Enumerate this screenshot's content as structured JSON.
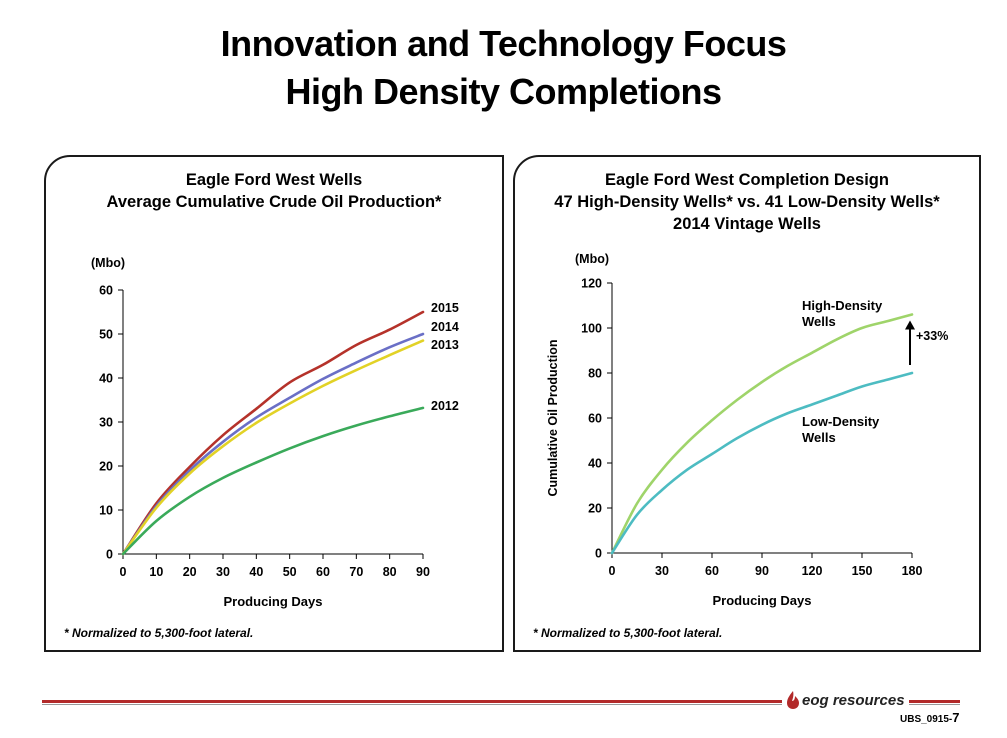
{
  "slide": {
    "title_line1": "Innovation and Technology Focus",
    "title_line2": "High Density Completions",
    "logo_text": "eog resources",
    "slide_code": "UBS_0915-",
    "slide_number": "7"
  },
  "chart_data": [
    {
      "type": "line",
      "title": "Eagle Ford West Wells",
      "subtitle": "Average Cumulative Crude Oil Production*",
      "xlabel": "Producing Days",
      "ylabel": "(Mbo)",
      "xlim": [
        0,
        90
      ],
      "ylim": [
        0,
        60
      ],
      "xticks": [
        0,
        10,
        20,
        30,
        40,
        50,
        60,
        70,
        80,
        90
      ],
      "yticks": [
        0,
        10,
        20,
        30,
        40,
        50,
        60
      ],
      "x": [
        0,
        10,
        20,
        30,
        40,
        50,
        60,
        70,
        80,
        90
      ],
      "series": [
        {
          "name": "2015",
          "color": "#b5322a",
          "values": [
            0,
            11.5,
            19.8,
            27.0,
            33.0,
            39.0,
            43.0,
            47.5,
            51.0,
            55.0
          ]
        },
        {
          "name": "2014",
          "color": "#6a6fc6",
          "values": [
            0,
            10.9,
            19.0,
            25.5,
            31.0,
            35.5,
            39.8,
            43.5,
            47.0,
            50.0
          ]
        },
        {
          "name": "2013",
          "color": "#e2d226",
          "values": [
            0,
            10.5,
            18.3,
            24.5,
            29.8,
            34.2,
            38.2,
            41.8,
            45.2,
            48.5
          ]
        },
        {
          "name": "2012",
          "color": "#3aaa5a",
          "values": [
            0,
            7.5,
            13.0,
            17.3,
            20.8,
            24.0,
            26.8,
            29.2,
            31.3,
            33.2
          ]
        }
      ],
      "footnote": "* Normalized to 5,300-foot lateral."
    },
    {
      "type": "line",
      "title": "Eagle Ford West Completion Design",
      "subtitle": "47 High-Density Wells* vs. 41 Low-Density Wells*",
      "subtitle2": "2014 Vintage Wells",
      "xlabel": "Producing Days",
      "ylabel": "Cumulative Oil Production",
      "yunit": "(Mbo)",
      "xlim": [
        0,
        180
      ],
      "ylim": [
        0,
        120
      ],
      "xticks": [
        0,
        30,
        60,
        90,
        120,
        150,
        180
      ],
      "yticks": [
        0,
        20,
        40,
        60,
        80,
        100,
        120
      ],
      "x": [
        0,
        15,
        30,
        45,
        60,
        75,
        90,
        105,
        120,
        135,
        150,
        165,
        180
      ],
      "series": [
        {
          "name": "High-Density\nWells",
          "color": "#9fd46a",
          "values": [
            0,
            22,
            37,
            49,
            59,
            68,
            76,
            83,
            89,
            95,
            100,
            103,
            106
          ]
        },
        {
          "name": "Low-Density\nWells",
          "color": "#4dbcc2",
          "values": [
            0,
            17,
            28,
            37,
            44,
            51,
            57,
            62,
            66,
            70,
            74,
            77,
            80
          ]
        }
      ],
      "annotation": "+33%",
      "footnote": "* Normalized to 5,300-foot lateral."
    }
  ]
}
